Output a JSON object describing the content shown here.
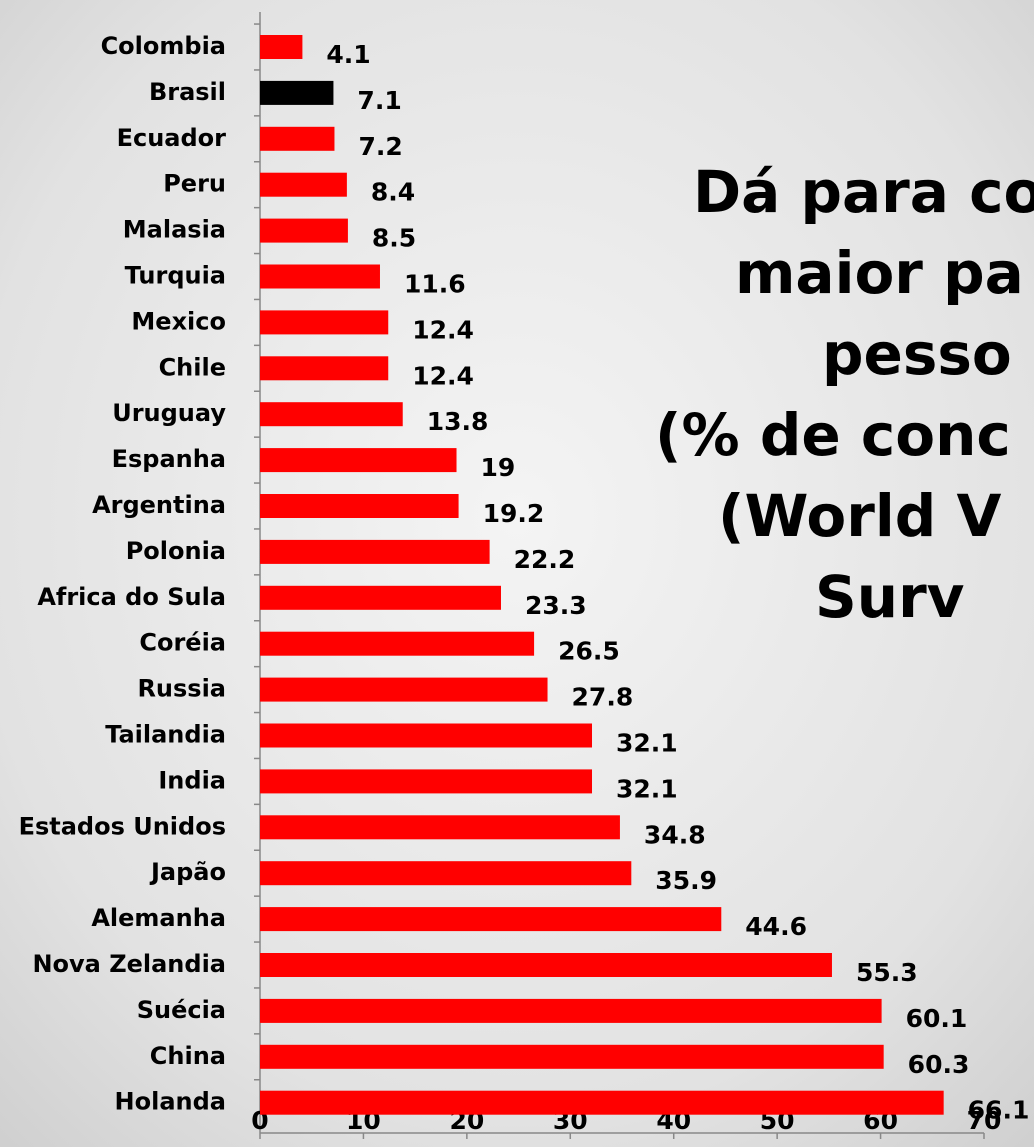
{
  "chart_data": {
    "type": "bar",
    "orientation": "horizontal",
    "title_lines": [
      "Dá para co",
      "maior pa",
      "pesso",
      "(% de conc",
      "(World V",
      "Surv"
    ],
    "categories": [
      "Colombia",
      "Brasil",
      "Ecuador",
      "Peru",
      "Malasia",
      "Turquia",
      "Mexico",
      "Chile",
      "Uruguay",
      "Espanha",
      "Argentina",
      "Polonia",
      "Africa do Sula",
      "Coréia",
      "Russia",
      "Tailandia",
      "India",
      "Estados Unidos",
      "Japão",
      "Alemanha",
      "Nova Zelandia",
      "Suécia",
      "China",
      "Holanda"
    ],
    "values": [
      4.1,
      7.1,
      7.2,
      8.4,
      8.5,
      11.6,
      12.4,
      12.4,
      13.8,
      19,
      19.2,
      22.2,
      23.3,
      26.5,
      27.8,
      32.1,
      32.1,
      34.8,
      35.9,
      44.6,
      55.3,
      60.1,
      60.3,
      66.1
    ],
    "colors": [
      "#ff0000",
      "#000000",
      "#ff0000",
      "#ff0000",
      "#ff0000",
      "#ff0000",
      "#ff0000",
      "#ff0000",
      "#ff0000",
      "#ff0000",
      "#ff0000",
      "#ff0000",
      "#ff0000",
      "#ff0000",
      "#ff0000",
      "#ff0000",
      "#ff0000",
      "#ff0000",
      "#ff0000",
      "#ff0000",
      "#ff0000",
      "#ff0000",
      "#ff0000",
      "#ff0000"
    ],
    "xlim": [
      0,
      70
    ],
    "xticks": [
      0,
      10,
      20,
      30,
      40,
      50,
      60,
      70
    ]
  }
}
